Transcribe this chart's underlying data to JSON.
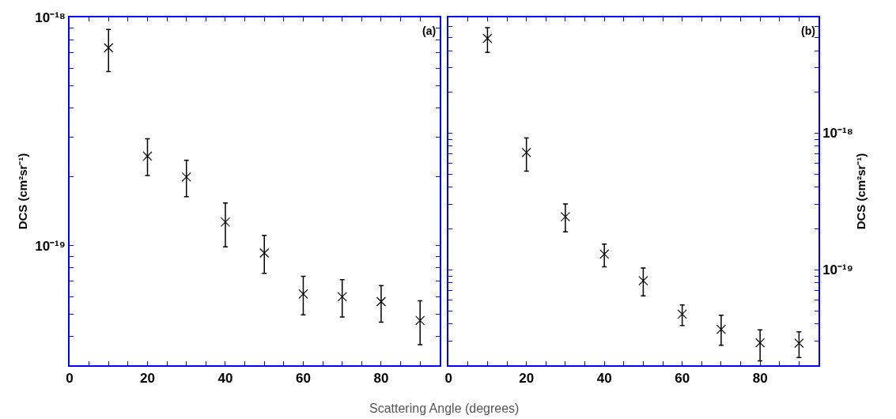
{
  "chart_data": [
    {
      "type": "scatter",
      "xlabel": "Scattering Angle (degrees)",
      "ylabel": "DCS (cm²sr⁻¹)",
      "annotations": [
        "(a)"
      ],
      "log": "y",
      "marker": "cross",
      "color": "#000000",
      "x": [
        10,
        20,
        30,
        40,
        50,
        60,
        70,
        80,
        90
      ],
      "values": [
        7.36e-19,
        2.47e-19,
        2e-19,
        1.27e-19,
        9.3e-20,
        6.15e-20,
        5.98e-20,
        5.7e-20,
        4.71e-20
      ],
      "errors": [
        [
          5.79e-19,
          8.85e-19
        ],
        [
          2.03e-19,
          2.94e-19
        ],
        [
          1.64e-19,
          2.37e-19
        ],
        [
          9.9e-20,
          1.54e-19
        ],
        [
          7.57e-20,
          1.11e-19
        ],
        [
          4.99e-20,
          7.36e-20
        ],
        [
          4.88e-20,
          7.11e-20
        ],
        [
          4.63e-20,
          6.7e-20
        ],
        [
          3.69e-20,
          5.74e-20
        ]
      ],
      "xlim": [
        0,
        95
      ],
      "xticks": [
        0,
        {
          "value": 5,
          "label": null
        },
        {
          "value": 10,
          "label": null
        },
        {
          "value": 15,
          "label": null
        },
        20,
        {
          "value": 25,
          "label": null
        },
        {
          "value": 30,
          "label": null
        },
        {
          "value": 35,
          "label": null
        },
        40,
        {
          "value": 45,
          "label": null
        },
        {
          "value": 50,
          "label": null
        },
        {
          "value": 55,
          "label": null
        },
        60,
        {
          "value": 65,
          "label": null
        },
        {
          "value": 70,
          "label": null
        },
        {
          "value": 75,
          "label": null
        },
        80,
        {
          "value": 85,
          "label": null
        },
        {
          "value": 90,
          "label": null
        },
        {
          "value": 95,
          "label": null
        }
      ],
      "ylim": [
        3e-20,
        1e-18
      ],
      "yticks": [
        {
          "value": 3e-20,
          "label": null
        },
        {
          "value": 4e-20,
          "label": null
        },
        {
          "value": 5e-20,
          "label": null
        },
        {
          "value": 6e-20,
          "label": null
        },
        {
          "value": 7e-20,
          "label": null
        },
        {
          "value": 8e-20,
          "label": null
        },
        {
          "value": 9e-20,
          "label": null
        },
        {
          "value": 1e-19,
          "label": "10⁻¹⁹"
        },
        {
          "value": 2e-19,
          "label": null
        },
        {
          "value": 3e-19,
          "label": null
        },
        {
          "value": 4e-19,
          "label": null
        },
        {
          "value": 5e-19,
          "label": null
        },
        {
          "value": 6e-19,
          "label": null
        },
        {
          "value": 7e-19,
          "label": null
        },
        {
          "value": 8e-19,
          "label": null
        },
        {
          "value": 9e-19,
          "label": null
        },
        {
          "value": 1e-18,
          "label": "10⁻¹⁸"
        }
      ]
    },
    {
      "type": "scatter",
      "ylabel": "DCS (cm²sr⁻¹)",
      "annotations": [
        "(b)"
      ],
      "log": "y",
      "marker": "cross",
      "color": "#000000",
      "x": [
        10,
        20,
        30,
        40,
        50,
        60,
        70,
        80,
        90
      ],
      "values": [
        4.92e-18,
        7.2e-19,
        2.44e-19,
        1.3e-19,
        8.3e-20,
        4.73e-20,
        3.66e-20,
        2.92e-20,
        2.9e-20
      ],
      "errors": [
        [
          3.88e-18,
          5.88e-18
        ],
        [
          5.26e-19,
          9.2e-19
        ],
        [
          1.89e-19,
          3.02e-19
        ],
        [
          1.05e-19,
          1.54e-19
        ],
        [
          6.44e-20,
          1.03e-19
        ],
        [
          3.9e-20,
          5.52e-20
        ],
        [
          2.8e-20,
          4.64e-20
        ],
        [
          2.15e-20,
          3.63e-20
        ],
        [
          2.28e-20,
          3.51e-20
        ]
      ],
      "xlim": [
        0,
        95
      ],
      "xticks": [
        0,
        {
          "value": 5,
          "label": null
        },
        {
          "value": 10,
          "label": null
        },
        {
          "value": 15,
          "label": null
        },
        20,
        {
          "value": 25,
          "label": null
        },
        {
          "value": 30,
          "label": null
        },
        {
          "value": 35,
          "label": null
        },
        40,
        {
          "value": 45,
          "label": null
        },
        {
          "value": 50,
          "label": null
        },
        {
          "value": 55,
          "label": null
        },
        60,
        {
          "value": 65,
          "label": null
        },
        {
          "value": 70,
          "label": null
        },
        {
          "value": 75,
          "label": null
        },
        80,
        {
          "value": 85,
          "label": null
        },
        {
          "value": 90,
          "label": null
        },
        {
          "value": 95,
          "label": null
        }
      ],
      "ylim": [
        2e-20,
        7e-18
      ],
      "yticks": [
        {
          "value": 2e-20,
          "label": null
        },
        {
          "value": 3e-20,
          "label": null
        },
        {
          "value": 4e-20,
          "label": null
        },
        {
          "value": 5e-20,
          "label": null
        },
        {
          "value": 6e-20,
          "label": null
        },
        {
          "value": 7e-20,
          "label": null
        },
        {
          "value": 8e-20,
          "label": null
        },
        {
          "value": 9e-20,
          "label": null
        },
        {
          "value": 1e-19,
          "label": "10⁻¹⁹"
        },
        {
          "value": 2e-19,
          "label": null
        },
        {
          "value": 3e-19,
          "label": null
        },
        {
          "value": 4e-19,
          "label": null
        },
        {
          "value": 5e-19,
          "label": null
        },
        {
          "value": 6e-19,
          "label": null
        },
        {
          "value": 7e-19,
          "label": null
        },
        {
          "value": 8e-19,
          "label": null
        },
        {
          "value": 9e-19,
          "label": null
        },
        {
          "value": 1e-18,
          "label": "10⁻¹⁸"
        },
        {
          "value": 2e-18,
          "label": null
        },
        {
          "value": 3e-18,
          "label": null
        },
        {
          "value": 4e-18,
          "label": null
        },
        {
          "value": 5e-18,
          "label": null
        },
        {
          "value": 6e-18,
          "label": null
        },
        {
          "value": 7e-18,
          "label": null
        }
      ]
    }
  ]
}
